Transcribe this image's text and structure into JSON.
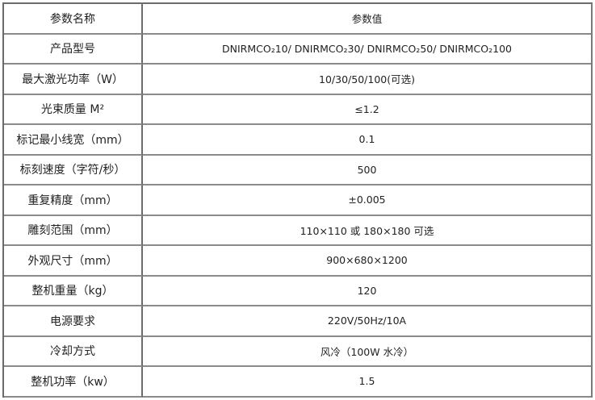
{
  "table": {
    "header": {
      "name": "参数名称",
      "value": "参数值"
    },
    "rows": [
      {
        "name": "产品型号",
        "value": "DNIRMCO₂10/ DNIRMCO₂30/ DNIRMCO₂50/ DNIRMCO₂100"
      },
      {
        "name": "最大激光功率（W）",
        "value": "10/30/50/100(可选)"
      },
      {
        "name": "光束质量 M²",
        "value": "≤1.2"
      },
      {
        "name": "标记最小线宽（mm）",
        "value": "0.1"
      },
      {
        "name": "标刻速度（字符/秒）",
        "value": "500"
      },
      {
        "name": "重复精度（mm）",
        "value": "±0.005"
      },
      {
        "name": "雕刻范围（mm）",
        "value": "110×110 或 180×180 可选"
      },
      {
        "name": "外观尺寸（mm）",
        "value": "900×680×1200"
      },
      {
        "name": "整机重量（kg）",
        "value": "120"
      },
      {
        "name": "电源要求",
        "value": "220V/50Hz/10A"
      },
      {
        "name": "冷却方式",
        "value": "风冷（100W 水冷）"
      },
      {
        "name": "整机功率（kw）",
        "value": "1.5"
      }
    ]
  }
}
